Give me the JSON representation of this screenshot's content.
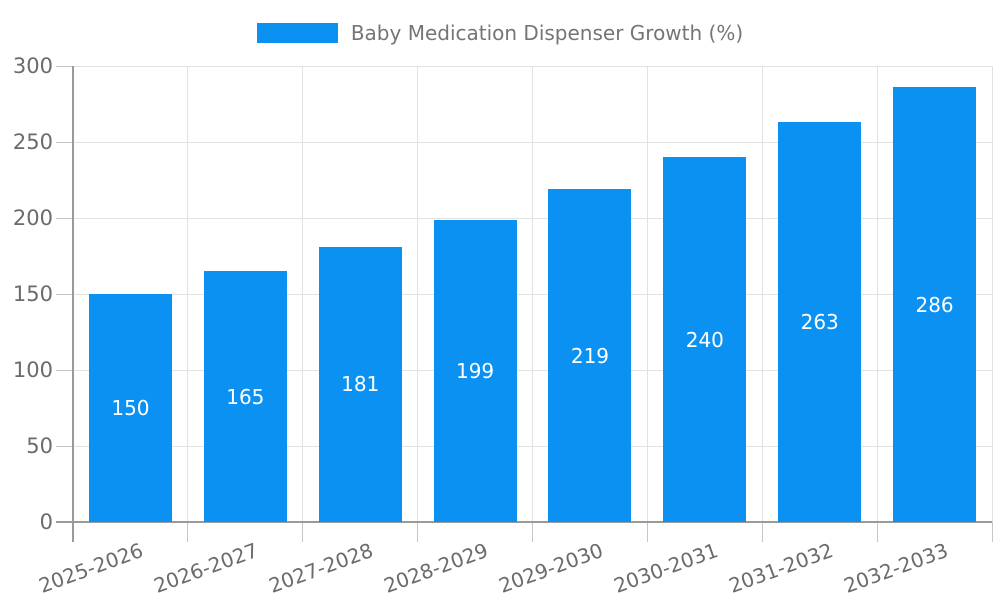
{
  "chart_data": {
    "type": "bar",
    "title": "Baby Medication Dispenser Growth (%)",
    "series_name": "Baby Medication Dispenser Growth (%)",
    "categories": [
      "2025-2026",
      "2026-2027",
      "2027-2028",
      "2028-2029",
      "2029-2030",
      "2030-2031",
      "2031-2032",
      "2032-2033"
    ],
    "values": [
      150,
      165,
      181,
      199,
      219,
      240,
      263,
      286
    ],
    "xlabel": "",
    "ylabel": "",
    "ylim": [
      0,
      300
    ],
    "yticks": [
      0,
      50,
      100,
      150,
      200,
      250,
      300
    ],
    "grid": true,
    "legend_position": "top",
    "value_label_position": "inside-center",
    "x_label_rotation_deg": -20,
    "colors": {
      "bar": "#0a91f2",
      "value_text": "#ffffff",
      "grid": "#e2e2e2",
      "tick": "#c6c6c6",
      "axis_line": "#9a9a9a",
      "axis_text": "#6b6b6b",
      "legend_text": "#757575"
    }
  }
}
